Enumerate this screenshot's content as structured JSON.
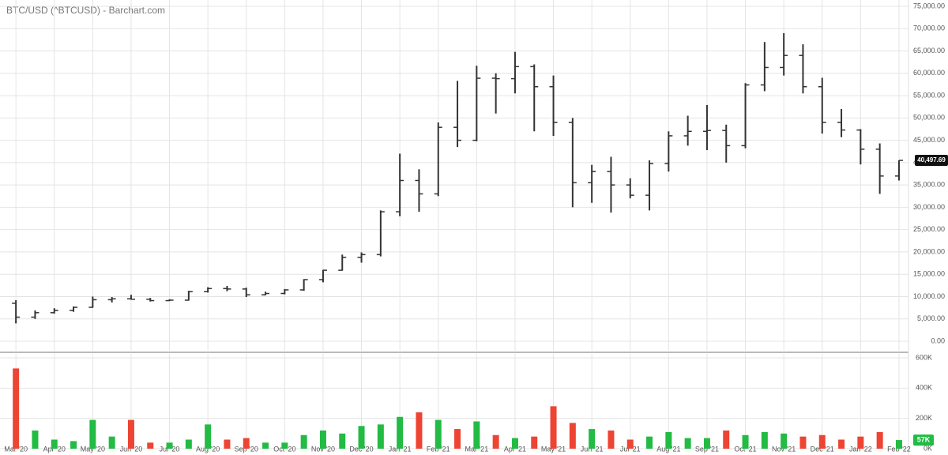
{
  "chart_data": {
    "type": "ohlc",
    "title": "BTC/USD (^BTCUSD) - Barchart.com",
    "categories": [
      "Mar '20",
      null,
      "Apr '20",
      null,
      "May '20",
      null,
      "Jun '20",
      null,
      "Jul '20",
      null,
      "Aug '20",
      null,
      "Sep '20",
      null,
      "Oct '20",
      null,
      "Nov '20",
      null,
      "Dec '20",
      null,
      "Jan '21",
      null,
      "Feb '21",
      null,
      "Mar '21",
      null,
      "Apr '21",
      null,
      "May '21",
      null,
      "Jun '21",
      null,
      "Jul '21",
      null,
      "Aug '21",
      null,
      "Sep '21",
      null,
      "Oct '21",
      null,
      "Nov '21",
      null,
      "Dec '21",
      null,
      "Jan '22",
      null,
      "Feb '22"
    ],
    "open": [
      8500,
      5400,
      6400,
      6900,
      7600,
      9300,
      9500,
      9400,
      9100,
      9200,
      11100,
      11800,
      11700,
      10400,
      10700,
      11500,
      13800,
      15900,
      18800,
      19400,
      29000,
      36000,
      33000,
      47900,
      45000,
      58900,
      58800,
      61500,
      57000,
      49000,
      35500,
      38000,
      35000,
      32700,
      39800,
      46000,
      47000,
      47200,
      43800,
      57400,
      61300,
      64000,
      57000,
      49000,
      47300,
      43000,
      37000
    ],
    "high": [
      9200,
      6900,
      7400,
      7800,
      10000,
      9900,
      10400,
      9700,
      9400,
      11300,
      12100,
      12400,
      12000,
      11100,
      11700,
      13900,
      16000,
      19400,
      19900,
      29300,
      42000,
      38500,
      49000,
      58300,
      61700,
      60000,
      64800,
      62000,
      59500,
      50000,
      39500,
      41300,
      36500,
      40500,
      47000,
      50500,
      52900,
      48500,
      57800,
      67000,
      69000,
      66500,
      59000,
      52000,
      47500,
      44300,
      40500
    ],
    "low": [
      4000,
      5000,
      6200,
      6600,
      7500,
      8700,
      9300,
      8900,
      9000,
      9100,
      10900,
      11200,
      9900,
      10300,
      10500,
      11300,
      13200,
      15800,
      17600,
      19000,
      28000,
      29000,
      32500,
      43500,
      44800,
      51000,
      55500,
      47000,
      46000,
      30000,
      31000,
      28800,
      32000,
      29300,
      38000,
      43800,
      42800,
      40000,
      43200,
      56000,
      59500,
      55500,
      46500,
      45700,
      39600,
      33000,
      36000
    ],
    "close": [
      5400,
      6400,
      6900,
      7600,
      9300,
      9500,
      9400,
      9100,
      9200,
      11100,
      11800,
      11700,
      10400,
      10700,
      11500,
      13800,
      15900,
      18800,
      19400,
      29000,
      36000,
      33000,
      47900,
      45000,
      58900,
      58800,
      61500,
      57000,
      49000,
      35500,
      38000,
      35000,
      32700,
      39800,
      46000,
      47000,
      47200,
      43800,
      57400,
      61300,
      64000,
      57000,
      49000,
      47300,
      43000,
      37000,
      40497.69
    ],
    "last_price_label": "40,497.69",
    "bar_color": "#333333",
    "ylim": [
      0,
      75000
    ],
    "yticks": [
      {
        "value": 0,
        "label": "0.00"
      },
      {
        "value": 5000,
        "label": "5,000.00"
      },
      {
        "value": 10000,
        "label": "10,000.00"
      },
      {
        "value": 15000,
        "label": "15,000.00"
      },
      {
        "value": 20000,
        "label": "20,000.00"
      },
      {
        "value": 25000,
        "label": "25,000.00"
      },
      {
        "value": 30000,
        "label": "30,000.00"
      },
      {
        "value": 35000,
        "label": "35,000.00"
      },
      {
        "value": 40000,
        "label": "40,000.00"
      },
      {
        "value": 45000,
        "label": "45,000.00"
      },
      {
        "value": 50000,
        "label": "50,000.00"
      },
      {
        "value": 55000,
        "label": "55,000.00"
      },
      {
        "value": 60000,
        "label": "60,000.00"
      },
      {
        "value": 65000,
        "label": "65,000.00"
      },
      {
        "value": 70000,
        "label": "70,000.00"
      },
      {
        "value": 75000,
        "label": "75,000.00"
      }
    ],
    "volume": [
      530000,
      120000,
      60000,
      50000,
      190000,
      80000,
      190000,
      40000,
      40000,
      60000,
      160000,
      60000,
      70000,
      40000,
      40000,
      90000,
      120000,
      100000,
      150000,
      160000,
      210000,
      240000,
      190000,
      130000,
      180000,
      90000,
      70000,
      80000,
      280000,
      170000,
      130000,
      120000,
      60000,
      80000,
      110000,
      70000,
      70000,
      120000,
      90000,
      110000,
      100000,
      80000,
      90000,
      60000,
      80000,
      110000,
      57000
    ],
    "last_volume_label": "57K",
    "up_color": "#22bb44",
    "down_color": "#ee4433",
    "volume_ylim": [
      0,
      600000
    ],
    "volume_yticks": [
      {
        "value": 0,
        "label": "0K"
      },
      {
        "value": 200000,
        "label": "200K"
      },
      {
        "value": 400000,
        "label": "400K"
      },
      {
        "value": 600000,
        "label": "600K"
      }
    ],
    "grid": true
  }
}
